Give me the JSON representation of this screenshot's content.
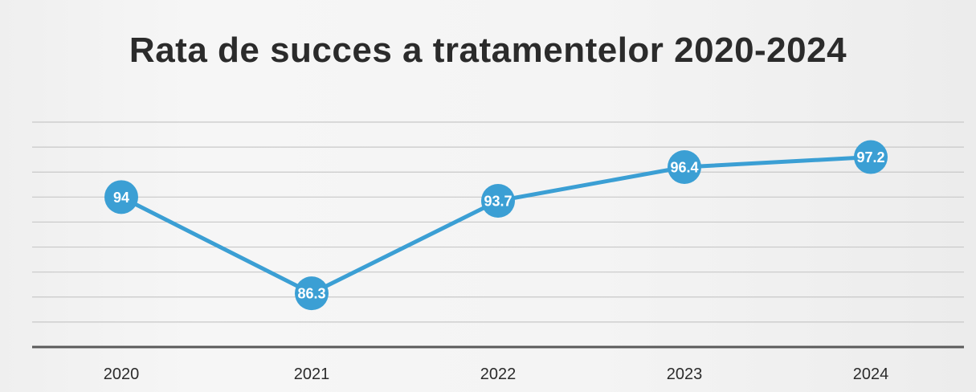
{
  "chart_data": {
    "type": "line",
    "title": "Rata de succes a tratamentelor 2020-2024",
    "categories": [
      "2020",
      "2021",
      "2022",
      "2023",
      "2024"
    ],
    "series": [
      {
        "values": [
          94,
          86.3,
          93.7,
          96.4,
          97.2
        ]
      }
    ],
    "value_labels": [
      "94",
      "86.3",
      "93.7",
      "96.4",
      "97.2"
    ],
    "ylim": [
      82,
      100
    ],
    "grid": true,
    "legend": "none",
    "colors": {
      "line": "#3b9fd4",
      "marker": "#3b9fd4",
      "label": "#ffffff",
      "grid": "#c8c8c8",
      "axis": "#5a5a5a"
    }
  }
}
